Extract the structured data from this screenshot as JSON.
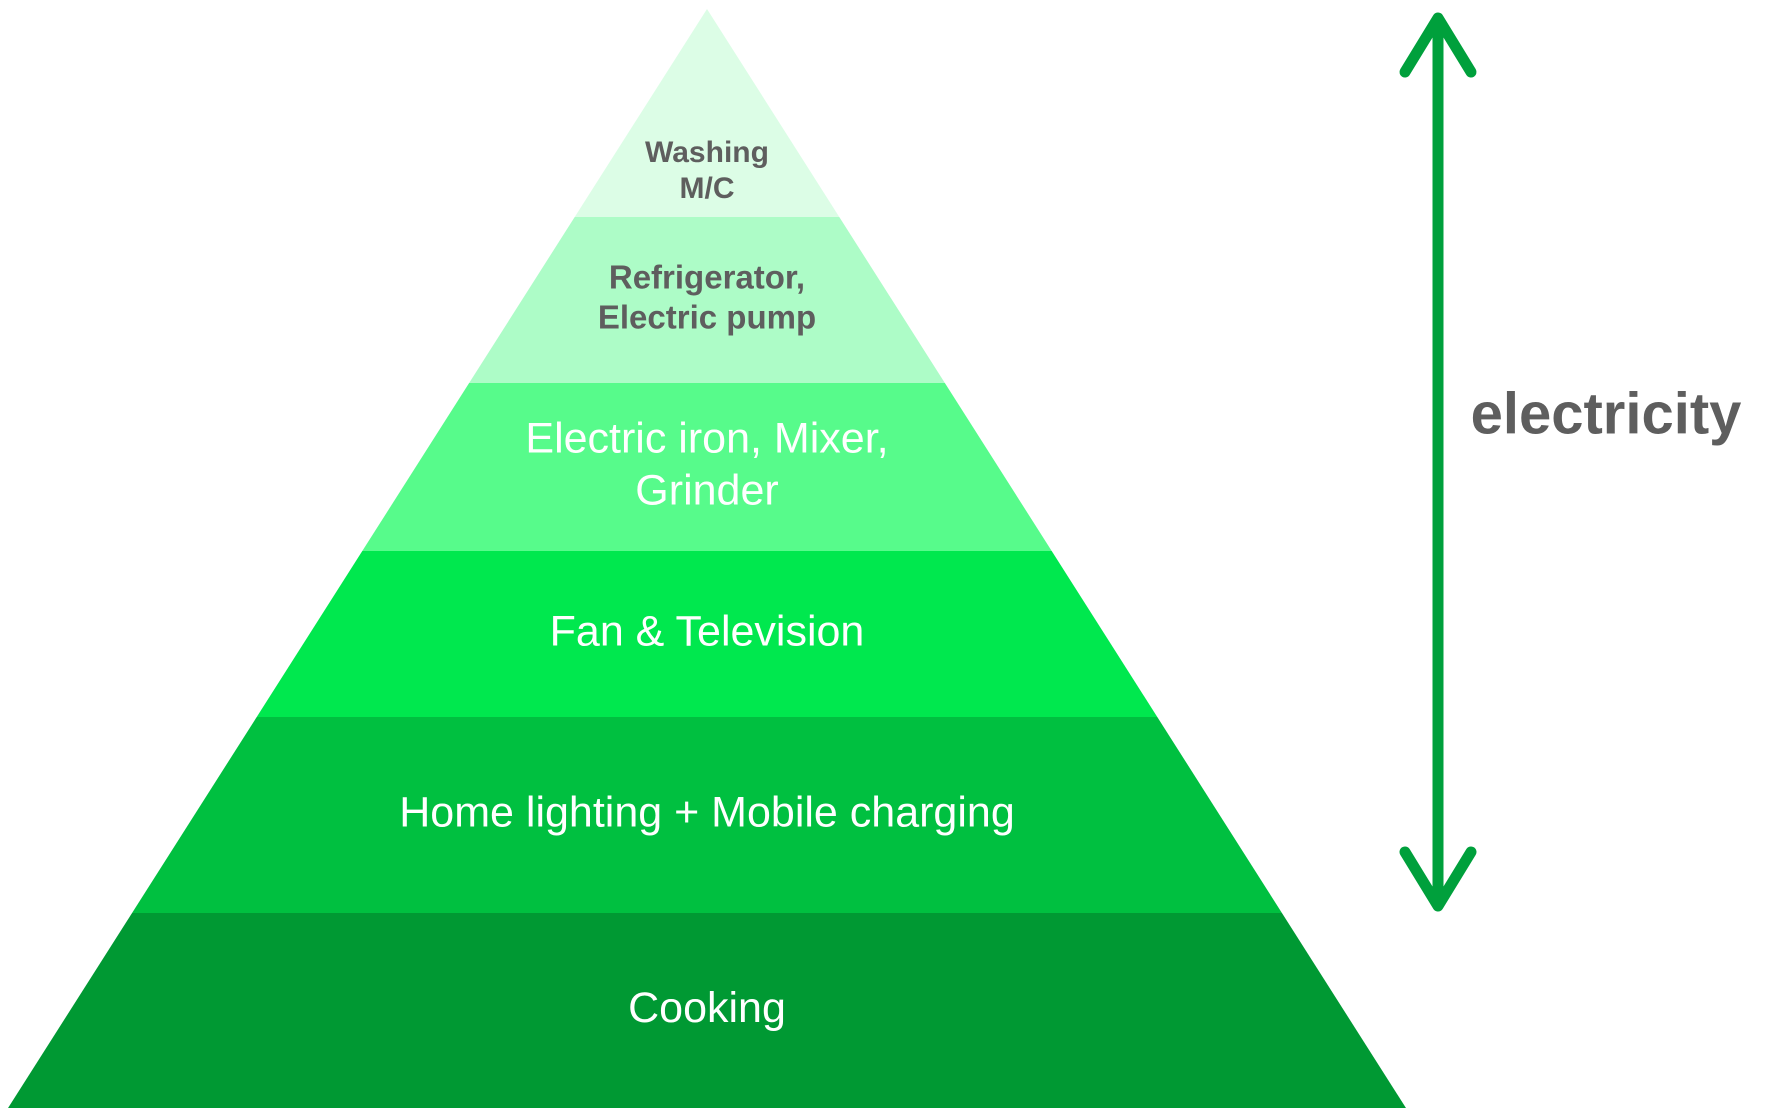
{
  "layers": [
    {
      "lines": [
        "Washing",
        "M/C"
      ]
    },
    {
      "lines": [
        "Refrigerator,",
        "Electric pump"
      ]
    },
    {
      "lines": [
        "Electric iron, Mixer,",
        "Grinder"
      ]
    },
    {
      "lines": [
        "Fan & Television"
      ]
    },
    {
      "lines": [
        "Home lighting + Mobile charging"
      ]
    },
    {
      "lines": [
        "Cooking"
      ]
    }
  ],
  "side_label": "electricity"
}
